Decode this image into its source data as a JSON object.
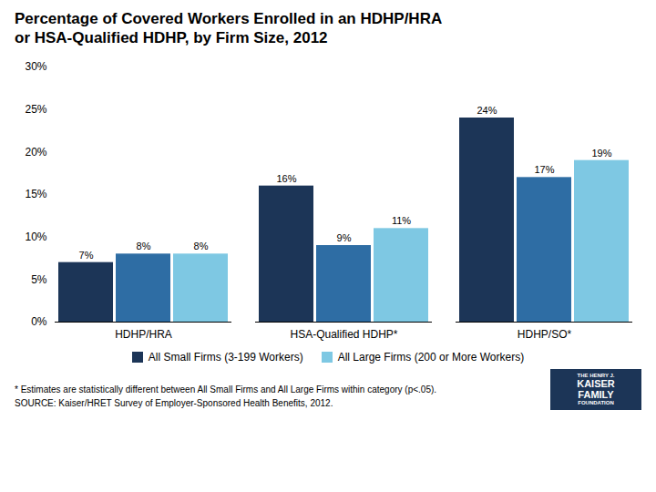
{
  "chart_data": {
    "type": "bar",
    "title": "Percentage of Covered Workers Enrolled in an HDHP/HRA",
    "subtitle": "or HSA-Qualified HDHP, by Firm Size, 2012",
    "categories": [
      "HDHP/HRA",
      "HSA-Qualified HDHP*",
      "HDHP/SO*"
    ],
    "series": [
      {
        "name": "All Small Firms (3-199 Workers)",
        "color": "#1c3557",
        "values": [
          7,
          16,
          24
        ],
        "value_labels": [
          "7%",
          "16%",
          "24%"
        ]
      },
      {
        "name": null,
        "color": "#2e6da4",
        "values": [
          8,
          9,
          17
        ],
        "value_labels": [
          "8%",
          "9%",
          "17%"
        ]
      },
      {
        "name": "All Large Firms (200 or More Workers)",
        "color": "#7ec8e3",
        "values": [
          8,
          11,
          19
        ],
        "value_labels": [
          "8%",
          "11%",
          "19%"
        ]
      }
    ],
    "ylim": [
      0,
      30
    ],
    "yticks": [
      {
        "value": 0,
        "label": "0%"
      },
      {
        "value": 5,
        "label": "5%"
      },
      {
        "value": 10,
        "label": "10%"
      },
      {
        "value": 15,
        "label": "15%"
      },
      {
        "value": 20,
        "label": "20%"
      },
      {
        "value": 25,
        "label": "25%"
      },
      {
        "value": 30,
        "label": "30%"
      }
    ],
    "grid": false,
    "legend": "bottom",
    "data_labels": true,
    "annotations": [
      "* Estimates are statistically different between All Small Firms and All Large Firms within category (p<.05).",
      "SOURCE:  Kaiser/HRET Survey of Employer-Sponsored Health Benefits, 2012."
    ],
    "logo": [
      "THE HENRY J.",
      "KAISER",
      "FAMILY",
      "FOUNDATION"
    ]
  }
}
